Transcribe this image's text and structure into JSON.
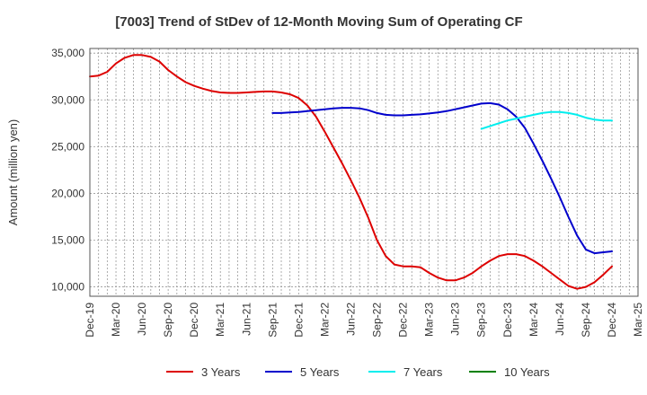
{
  "chart_data": {
    "type": "line",
    "title": "[7003]  Trend of StDev of 12-Month Moving Sum of Operating CF",
    "ylabel": "Amount (million yen)",
    "xlabel": "",
    "ylim": [
      9000,
      35500
    ],
    "yticks": [
      10000,
      15000,
      20000,
      25000,
      30000,
      35000
    ],
    "ytick_labels": [
      "10,000",
      "15,000",
      "20,000",
      "25,000",
      "30,000",
      "35,000"
    ],
    "xlim": [
      "2019-12",
      "2025-03"
    ],
    "xtick_labels": [
      "Dec-19",
      "Mar-20",
      "Jun-20",
      "Sep-20",
      "Dec-20",
      "Mar-21",
      "Jun-21",
      "Sep-21",
      "Dec-21",
      "Mar-22",
      "Jun-22",
      "Sep-22",
      "Dec-22",
      "Mar-23",
      "Jun-23",
      "Sep-23",
      "Dec-23",
      "Mar-24",
      "Jun-24",
      "Sep-24",
      "Dec-24",
      "Mar-25"
    ],
    "grid": true,
    "legend_position": "bottom",
    "series": [
      {
        "name": "3 Years",
        "color": "#dd0000",
        "x": [
          "2019-12",
          "2020-01",
          "2020-02",
          "2020-03",
          "2020-04",
          "2020-05",
          "2020-06",
          "2020-07",
          "2020-08",
          "2020-09",
          "2020-10",
          "2020-11",
          "2020-12",
          "2021-01",
          "2021-02",
          "2021-03",
          "2021-04",
          "2021-05",
          "2021-06",
          "2021-07",
          "2021-08",
          "2021-09",
          "2021-10",
          "2021-11",
          "2021-12",
          "2022-01",
          "2022-02",
          "2022-03",
          "2022-04",
          "2022-05",
          "2022-06",
          "2022-07",
          "2022-08",
          "2022-09",
          "2022-10",
          "2022-11",
          "2022-12",
          "2023-01",
          "2023-02",
          "2023-03",
          "2023-04",
          "2023-05",
          "2023-06",
          "2023-07",
          "2023-08",
          "2023-09",
          "2023-10",
          "2023-11",
          "2023-12",
          "2024-01",
          "2024-02",
          "2024-03",
          "2024-04",
          "2024-05",
          "2024-06",
          "2024-07",
          "2024-08",
          "2024-09",
          "2024-10",
          "2024-11",
          "2024-12"
        ],
        "values": [
          32500,
          32600,
          33000,
          33900,
          34500,
          34800,
          34800,
          34600,
          34100,
          33200,
          32500,
          31900,
          31500,
          31200,
          30950,
          30800,
          30750,
          30750,
          30800,
          30850,
          30900,
          30900,
          30800,
          30600,
          30200,
          29400,
          28200,
          26600,
          24900,
          23200,
          21400,
          19500,
          17400,
          15000,
          13300,
          12400,
          12200,
          12200,
          12100,
          11500,
          11000,
          10700,
          10700,
          11000,
          11500,
          12200,
          12800,
          13300,
          13500,
          13500,
          13300,
          12800,
          12200,
          11500,
          10800,
          10100,
          9800,
          10000,
          10500,
          11300,
          12200
        ]
      },
      {
        "name": "5 Years",
        "color": "#0000cc",
        "x": [
          "2021-09",
          "2021-10",
          "2021-11",
          "2021-12",
          "2022-01",
          "2022-02",
          "2022-03",
          "2022-04",
          "2022-05",
          "2022-06",
          "2022-07",
          "2022-08",
          "2022-09",
          "2022-10",
          "2022-11",
          "2022-12",
          "2023-01",
          "2023-02",
          "2023-03",
          "2023-04",
          "2023-05",
          "2023-06",
          "2023-07",
          "2023-08",
          "2023-09",
          "2023-10",
          "2023-11",
          "2023-12",
          "2024-01",
          "2024-02",
          "2024-03",
          "2024-04",
          "2024-05",
          "2024-06",
          "2024-07",
          "2024-08",
          "2024-09",
          "2024-10",
          "2024-11",
          "2024-12"
        ],
        "values": [
          28600,
          28600,
          28650,
          28700,
          28800,
          28900,
          29000,
          29100,
          29150,
          29150,
          29100,
          28900,
          28600,
          28400,
          28350,
          28350,
          28400,
          28450,
          28550,
          28650,
          28800,
          29000,
          29200,
          29400,
          29600,
          29650,
          29500,
          29000,
          28200,
          27000,
          25300,
          23500,
          21600,
          19600,
          17500,
          15500,
          14000,
          13600,
          13700,
          13800
        ]
      },
      {
        "name": "7 Years",
        "color": "#00eeee",
        "x": [
          "2023-09",
          "2023-10",
          "2023-11",
          "2023-12",
          "2024-01",
          "2024-02",
          "2024-03",
          "2024-04",
          "2024-05",
          "2024-06",
          "2024-07",
          "2024-08",
          "2024-09",
          "2024-10",
          "2024-11",
          "2024-12"
        ],
        "values": [
          26900,
          27200,
          27500,
          27800,
          28000,
          28200,
          28400,
          28600,
          28700,
          28700,
          28600,
          28400,
          28100,
          27900,
          27800,
          27800
        ]
      },
      {
        "name": "10 Years",
        "color": "#008000",
        "x": [],
        "values": []
      }
    ]
  }
}
